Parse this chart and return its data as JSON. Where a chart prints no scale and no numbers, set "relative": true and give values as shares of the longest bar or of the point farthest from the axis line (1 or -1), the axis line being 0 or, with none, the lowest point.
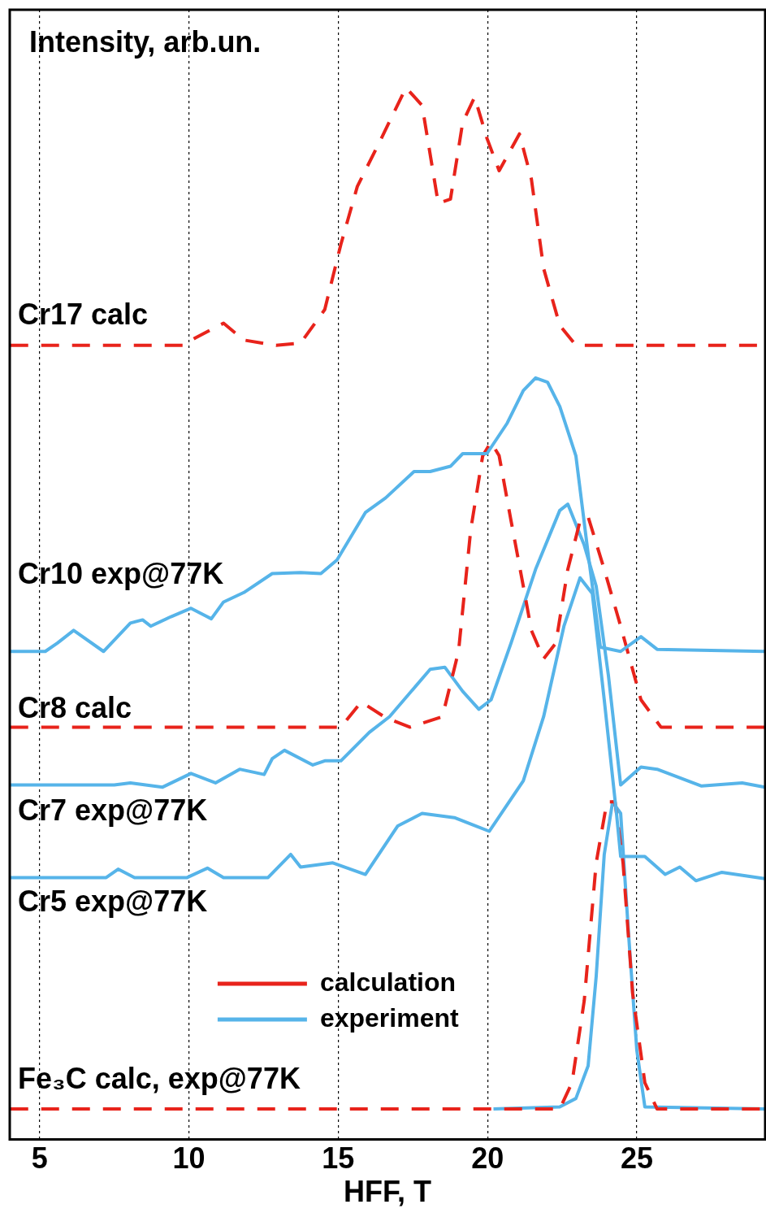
{
  "chart_data": {
    "type": "line",
    "relative": true,
    "xlabel": "HFF, T",
    "ylabel": "Intensity, arb.un.",
    "xlim": [
      4.0,
      29.3
    ],
    "xticks": [
      5,
      10,
      15,
      20,
      25
    ],
    "grid": "x",
    "legend": "bottom",
    "marker": "none",
    "series": [
      {
        "name": "calculation",
        "color": "#e8231b",
        "line_style": "dashed",
        "x": [
          4.02,
          9.8,
          10.21,
          11.16,
          11.84,
          12.92,
          13.74,
          14.55,
          15.09,
          15.64,
          16.45,
          17.27,
          17.81,
          18.35,
          18.76,
          19.17,
          19.57,
          19.98,
          20.39,
          21.07,
          21.47,
          21.88,
          22.42,
          22.96,
          29.29
        ],
        "values": [
          0.755,
          0.755,
          0.762,
          0.776,
          0.76,
          0.755,
          0.757,
          0.789,
          0.851,
          0.906,
          0.952,
          1.0,
          0.983,
          0.89,
          0.894,
          0.967,
          0.991,
          0.952,
          0.921,
          0.956,
          0.913,
          0.828,
          0.774,
          0.755,
          0.755
        ]
      },
      {
        "name": "experiment",
        "color": "#56b4e9",
        "line_style": "solid",
        "x": [
          4.02,
          5.19,
          5.6,
          6.14,
          7.14,
          8.04,
          8.45,
          8.72,
          9.4,
          10.07,
          10.75,
          11.16,
          11.84,
          12.79,
          13.74,
          14.42,
          14.96,
          15.91,
          16.59,
          17.54,
          18.08,
          18.76,
          19.17,
          19.98,
          20.66,
          21.2,
          21.61,
          22.01,
          22.42,
          22.96,
          23.37,
          23.78,
          24.46,
          25.14,
          25.68,
          29.29
        ],
        "values": [
          0.464,
          0.464,
          0.472,
          0.484,
          0.464,
          0.491,
          0.494,
          0.488,
          0.497,
          0.505,
          0.495,
          0.511,
          0.52,
          0.538,
          0.539,
          0.538,
          0.551,
          0.596,
          0.61,
          0.635,
          0.635,
          0.64,
          0.652,
          0.652,
          0.681,
          0.712,
          0.724,
          0.72,
          0.697,
          0.65,
          0.557,
          0.468,
          0.464,
          0.478,
          0.466,
          0.464
        ]
      },
      {
        "color": "#e8231b",
        "line_style": "dashed",
        "x": [
          4.02,
          15.09,
          15.77,
          16.59,
          17.4,
          18.49,
          19.03,
          19.44,
          19.84,
          20.12,
          20.39,
          20.79,
          21.2,
          21.47,
          21.88,
          22.29,
          22.69,
          23.1,
          23.37,
          23.91,
          24.46,
          25.14,
          25.81,
          29.29
        ],
        "values": [
          0.392,
          0.392,
          0.416,
          0.401,
          0.392,
          0.402,
          0.464,
          0.58,
          0.65,
          0.663,
          0.65,
          0.588,
          0.526,
          0.484,
          0.457,
          0.472,
          0.542,
          0.588,
          0.592,
          0.542,
          0.488,
          0.418,
          0.392,
          0.392
        ]
      },
      {
        "color": "#56b4e9",
        "line_style": "solid",
        "x": [
          4.02,
          7.5,
          8.04,
          9.12,
          10.07,
          10.89,
          11.7,
          12.52,
          12.79,
          13.2,
          14.15,
          14.55,
          15.09,
          16.04,
          16.72,
          18.08,
          18.57,
          19.17,
          19.71,
          20.12,
          20.79,
          21.61,
          22.42,
          22.69,
          23.24,
          23.64,
          24.05,
          24.46,
          25.14,
          25.68,
          27.17,
          28.53,
          29.29
        ],
        "values": [
          0.337,
          0.337,
          0.339,
          0.335,
          0.348,
          0.339,
          0.352,
          0.347,
          0.362,
          0.37,
          0.356,
          0.36,
          0.36,
          0.387,
          0.402,
          0.447,
          0.449,
          0.426,
          0.409,
          0.418,
          0.472,
          0.542,
          0.598,
          0.604,
          0.565,
          0.526,
          0.441,
          0.337,
          0.354,
          0.352,
          0.336,
          0.339,
          0.335
        ]
      },
      {
        "color": "#56b4e9",
        "line_style": "solid",
        "x": [
          4.02,
          7.23,
          7.63,
          8.18,
          9.94,
          10.62,
          11.16,
          12.65,
          13.41,
          13.74,
          14.82,
          15.91,
          16.99,
          17.81,
          18.89,
          20.06,
          21.2,
          21.88,
          22.56,
          23.1,
          23.51,
          23.91,
          24.32,
          24.46,
          25.27,
          25.95,
          26.44,
          26.98,
          27.85,
          29.29
        ],
        "values": [
          0.249,
          0.249,
          0.257,
          0.249,
          0.249,
          0.258,
          0.249,
          0.249,
          0.271,
          0.259,
          0.263,
          0.252,
          0.298,
          0.31,
          0.306,
          0.293,
          0.341,
          0.402,
          0.488,
          0.534,
          0.519,
          0.418,
          0.31,
          0.269,
          0.269,
          0.252,
          0.259,
          0.246,
          0.254,
          0.248
        ]
      },
      {
        "color": "#e8231b",
        "line_style": "dashed",
        "x": [
          4.02,
          22.42,
          22.83,
          23.24,
          23.64,
          24.0,
          24.27,
          24.54,
          24.86,
          25.27,
          25.68,
          29.29
        ],
        "values": [
          0.029,
          0.029,
          0.054,
          0.132,
          0.263,
          0.321,
          0.321,
          0.263,
          0.139,
          0.054,
          0.029,
          0.029
        ]
      },
      {
        "color": "#56b4e9",
        "line_style": "solid",
        "x": [
          20.2,
          22.42,
          22.96,
          23.37,
          23.64,
          23.91,
          24.19,
          24.46,
          24.73,
          25.0,
          25.27,
          29.29
        ],
        "values": [
          0.029,
          0.031,
          0.039,
          0.07,
          0.155,
          0.271,
          0.321,
          0.31,
          0.193,
          0.085,
          0.031,
          0.029
        ]
      }
    ],
    "annotations": [
      "Cr17 calc",
      "Cr10 exp@77K",
      "Cr8 calc",
      "Cr7 exp@77K",
      "Cr5 exp@77K",
      "Fe₃C calc, exp@77K"
    ]
  }
}
